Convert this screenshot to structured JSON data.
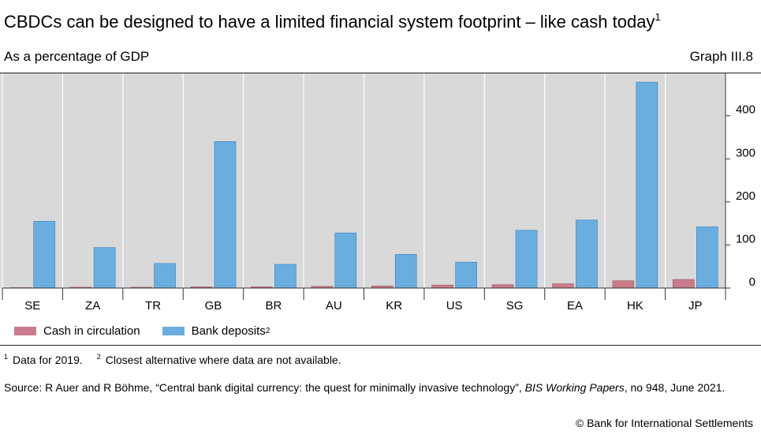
{
  "header": {
    "title": "CBDCs can be designed to have a limited financial system footprint – like cash today",
    "title_note": "1",
    "subtitle": "As a percentage of GDP",
    "graph_id": "Graph III.8"
  },
  "chart_data": {
    "type": "bar",
    "ylabel": "",
    "ylim": [
      0,
      480
    ],
    "yticks": [
      0,
      100,
      200,
      300,
      400
    ],
    "y_axis_side": "right",
    "grid": "vertical separators between categories",
    "background": "#d9d9d9",
    "categories": [
      "SE",
      "ZA",
      "TR",
      "GB",
      "BR",
      "AU",
      "KR",
      "US",
      "SG",
      "EA",
      "HK",
      "JP"
    ],
    "series": [
      {
        "name": "Cash in circulation",
        "color": "#c97b8a",
        "values": [
          1,
          2,
          2,
          3,
          3,
          4,
          5,
          7,
          8,
          10,
          17,
          20
        ]
      },
      {
        "name": "Bank deposits",
        "name_note": "2",
        "color": "#6aaee0",
        "values": [
          155,
          94,
          57,
          340,
          55,
          128,
          78,
          60,
          134,
          158,
          478,
          142
        ]
      }
    ]
  },
  "legend": {
    "cash_label": "Cash in circulation",
    "deposits_label": "Bank deposits",
    "deposits_note": "2"
  },
  "notes": {
    "n1_marker": "1",
    "n1_text": "Data for 2019.",
    "n2_marker": "2",
    "n2_text": "Closest alternative where data are not available."
  },
  "source": {
    "prefix": "Source: R Auer and R Böhme, “Central bank digital currency: the quest for minimally invasive technology”, ",
    "publication": "BIS Working Papers",
    "suffix": ", no 948, June 2021."
  },
  "copyright": "© Bank for International Settlements"
}
